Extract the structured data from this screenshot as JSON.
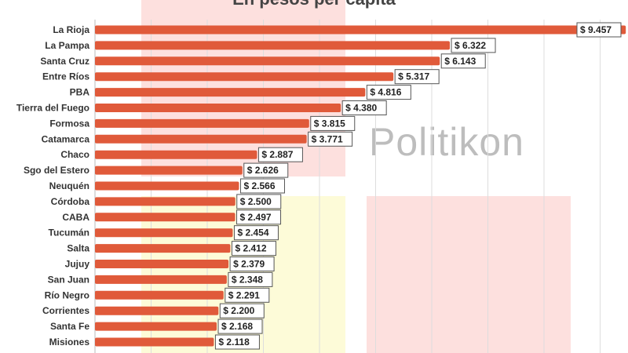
{
  "chart_data": {
    "type": "bar",
    "orientation": "horizontal",
    "title": "En pesos per capita",
    "watermark": "Politikon",
    "categories": [
      "La Rioja",
      "La Pampa",
      "Santa Cruz",
      "Entre Ríos",
      "PBA",
      "Tierra del Fuego",
      "Formosa",
      "Catamarca",
      "Chaco",
      "Sgo del Estero",
      "Neuquén",
      "Córdoba",
      "CABA",
      "Tucumán",
      "Salta",
      "Jujuy",
      "San Juan",
      "Río Negro",
      "Corrientes",
      "Santa Fe",
      "Misiones"
    ],
    "values": [
      9457,
      6322,
      6143,
      5317,
      4816,
      4380,
      3815,
      3771,
      2887,
      2626,
      2566,
      2500,
      2497,
      2454,
      2412,
      2379,
      2348,
      2291,
      2200,
      2168,
      2118
    ],
    "data_labels": [
      "$ 9.457",
      "$ 6.322",
      "$ 6.143",
      "$ 5.317",
      "$ 4.816",
      "$ 4.380",
      "$ 3.815",
      "$ 3.771",
      "$ 2.887",
      "$ 2.626",
      "$ 2.566",
      "$ 2.500",
      "$ 2.497",
      "$ 2.454",
      "$ 2.412",
      "$ 2.379",
      "$ 2.348",
      "$ 2.291",
      "$ 2.200",
      "$ 2.168",
      "$ 2.118"
    ],
    "xlim": [
      0,
      9500
    ],
    "grid": true,
    "grid_step": 1000,
    "colors": {
      "bar": "#e05a3a",
      "grid": "#dddddd",
      "watermark_pink": "#fde0de",
      "watermark_yellow": "#fdfbd8"
    }
  }
}
